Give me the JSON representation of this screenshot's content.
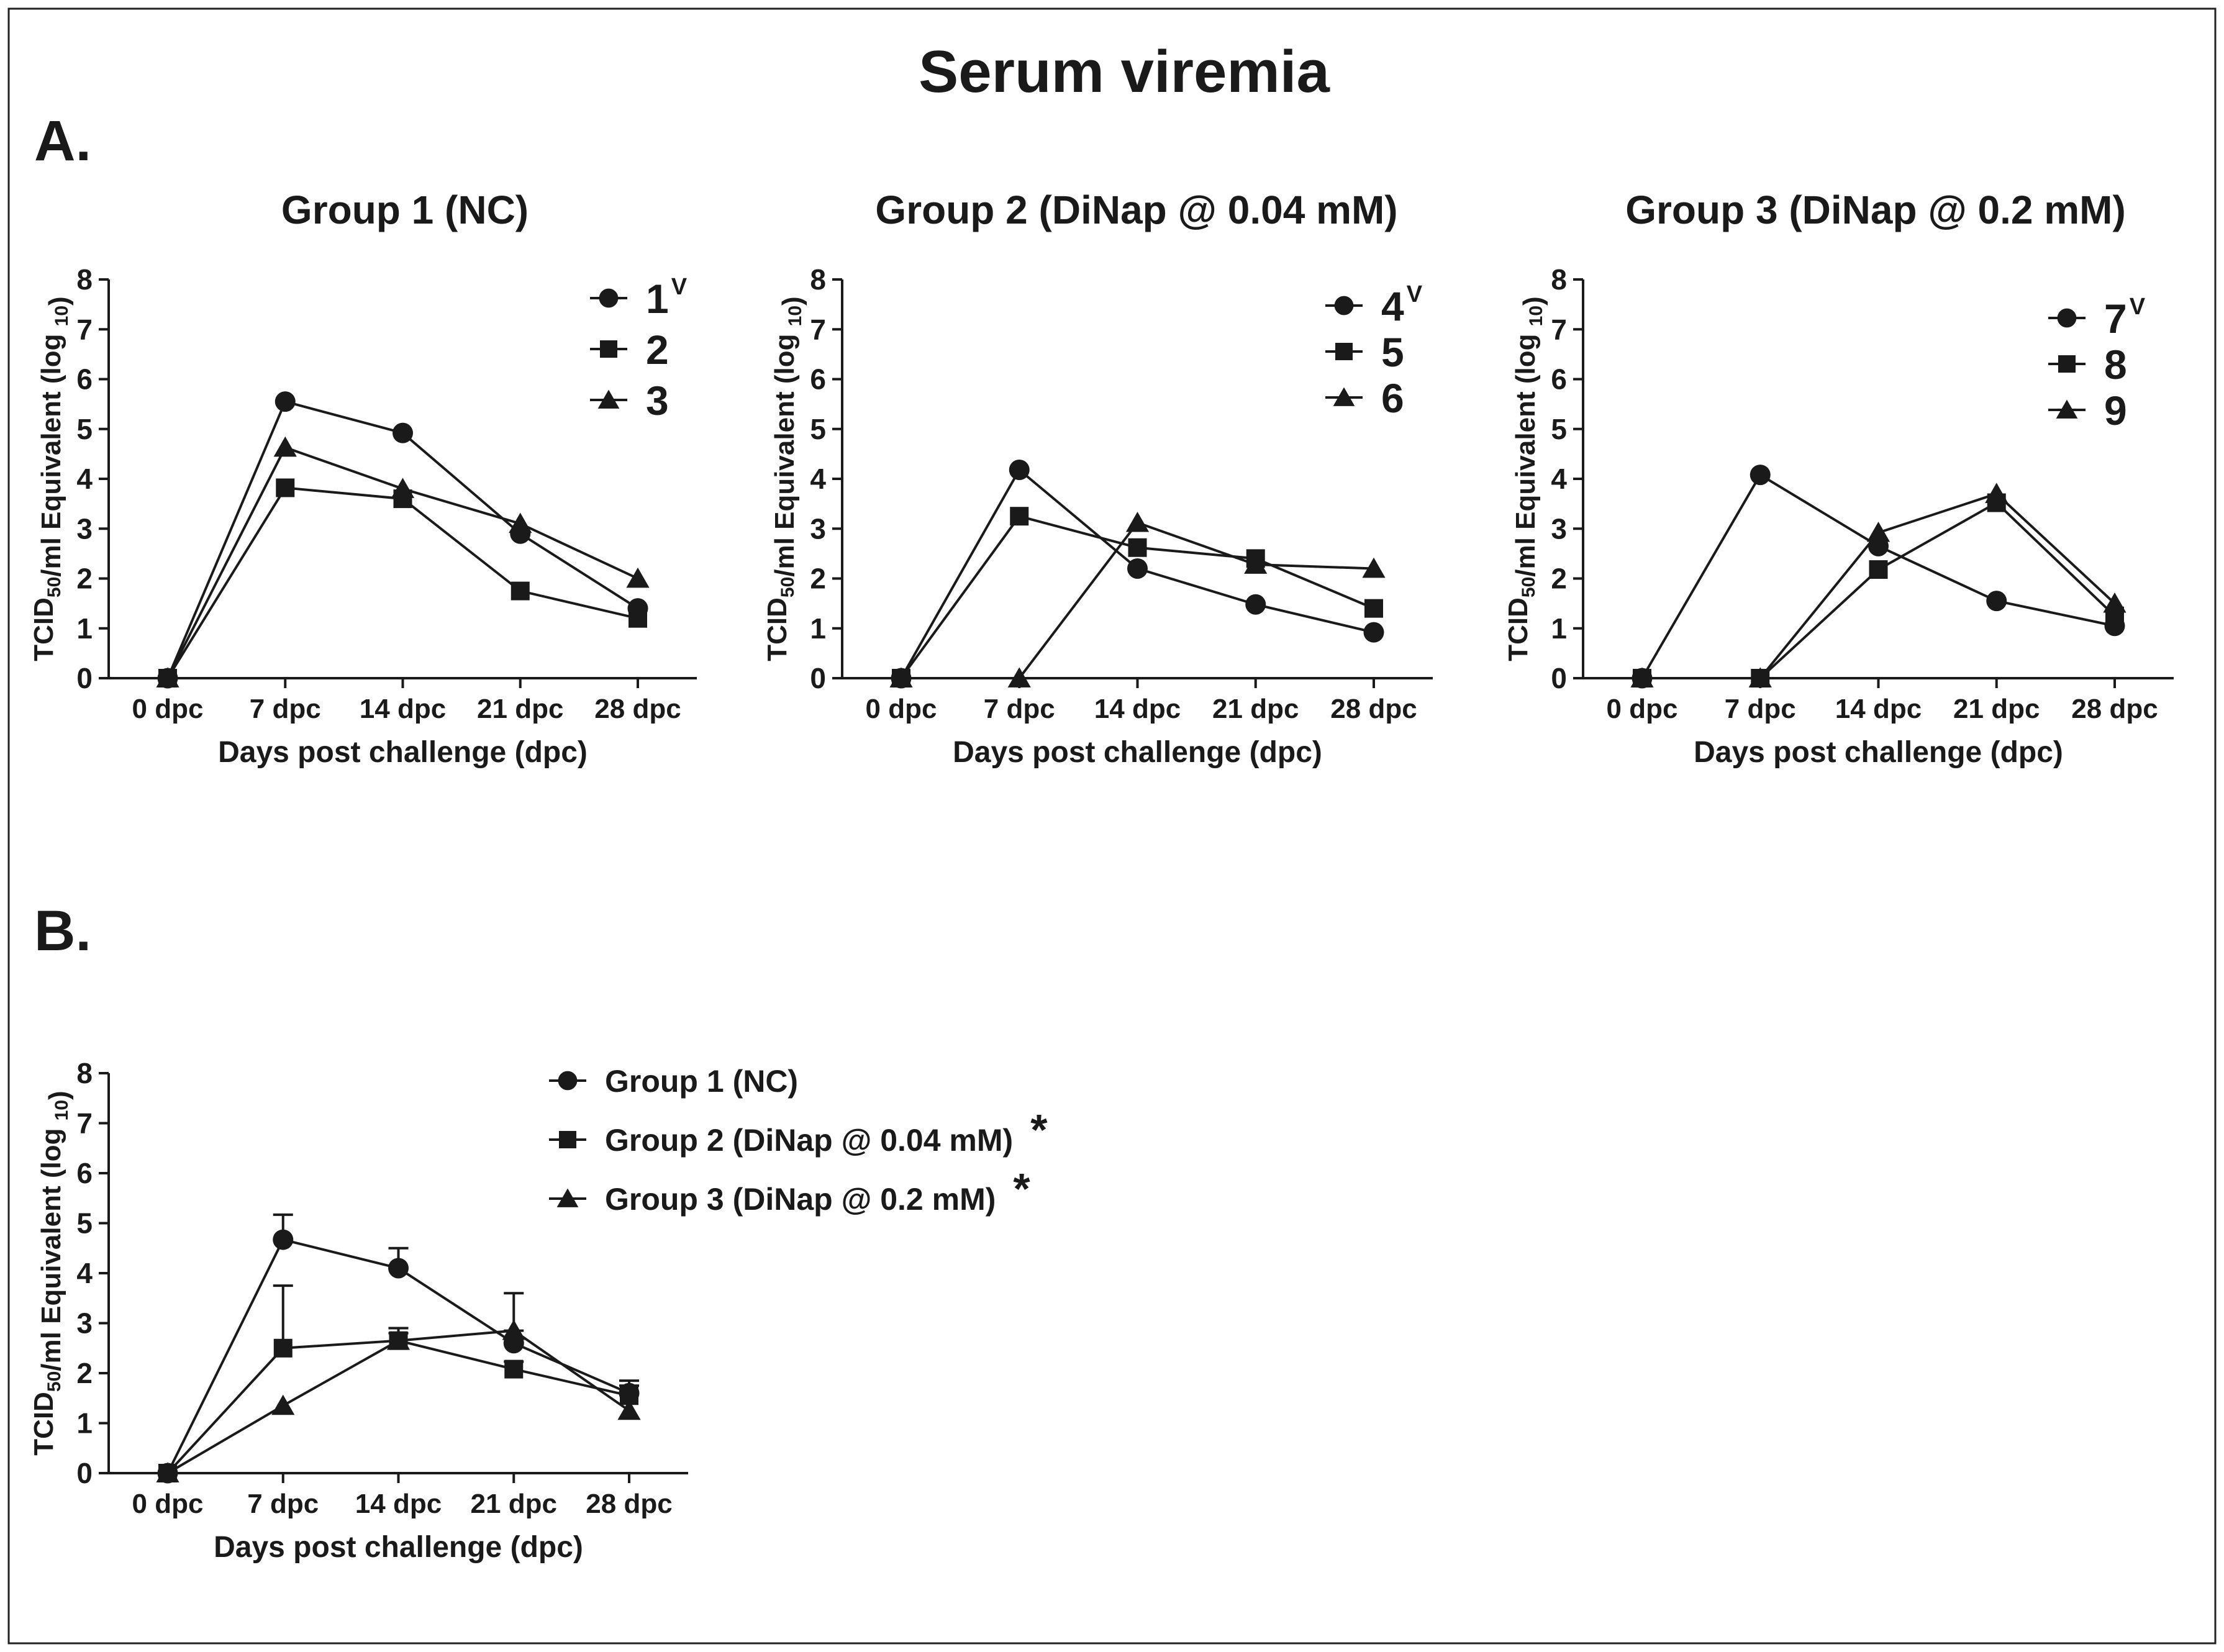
{
  "figure": {
    "title": "Serum viremia",
    "panel_a_label": "A.",
    "panel_b_label": "B."
  },
  "chart_data": [
    {
      "id": "g1",
      "type": "line",
      "title": "Group 1 (NC)",
      "categories": [
        "0 dpc",
        "7 dpc",
        "14 dpc",
        "21 dpc",
        "28 dpc"
      ],
      "xlabel": "Days post challenge (dpc)",
      "ylabel": "TCID50/ml Equivalent (log 10)",
      "ylim": [
        0,
        8
      ],
      "yticks": [
        "0",
        "1",
        "2",
        "3",
        "4",
        "5",
        "6",
        "7",
        "8"
      ],
      "legend_position": "top-right",
      "series": [
        {
          "name": "1",
          "superscript": "V",
          "marker": "circle",
          "values": [
            0,
            5.55,
            4.92,
            2.9,
            1.4
          ]
        },
        {
          "name": "2",
          "marker": "square",
          "values": [
            0,
            3.82,
            3.6,
            1.75,
            1.2
          ]
        },
        {
          "name": "3",
          "marker": "triangle",
          "values": [
            0,
            4.63,
            3.8,
            3.1,
            2.0
          ]
        }
      ]
    },
    {
      "id": "g2",
      "type": "line",
      "title": "Group 2 (DiNap @ 0.04 mM)",
      "categories": [
        "0 dpc",
        "7 dpc",
        "14 dpc",
        "21 dpc",
        "28 dpc"
      ],
      "xlabel": "Days post challenge (dpc)",
      "ylabel": "TCID50/ml Equivalent (log 10)",
      "ylim": [
        0,
        8
      ],
      "yticks": [
        "0",
        "1",
        "2",
        "3",
        "4",
        "5",
        "6",
        "7",
        "8"
      ],
      "legend_position": "top-right",
      "series": [
        {
          "name": "4",
          "superscript": "V",
          "marker": "circle",
          "values": [
            0,
            4.18,
            2.2,
            1.48,
            0.92
          ]
        },
        {
          "name": "5",
          "marker": "square",
          "values": [
            0,
            3.25,
            2.62,
            2.4,
            1.4
          ]
        },
        {
          "name": "6",
          "marker": "triangle",
          "values": [
            0,
            0,
            3.12,
            2.28,
            2.2
          ]
        }
      ]
    },
    {
      "id": "g3",
      "type": "line",
      "title": "Group 3 (DiNap @ 0.2 mM)",
      "categories": [
        "0 dpc",
        "7 dpc",
        "14 dpc",
        "21 dpc",
        "28 dpc"
      ],
      "xlabel": "Days post challenge (dpc)",
      "ylabel": "TCID50/ml Equivalent (log 10)",
      "ylim": [
        0,
        8
      ],
      "yticks": [
        "0",
        "1",
        "2",
        "3",
        "4",
        "5",
        "6",
        "7",
        "8"
      ],
      "legend_position": "top-right",
      "series": [
        {
          "name": "7",
          "superscript": "V",
          "marker": "circle",
          "values": [
            0,
            4.08,
            2.65,
            1.55,
            1.05
          ]
        },
        {
          "name": "8",
          "marker": "square",
          "values": [
            0,
            0,
            2.18,
            3.52,
            1.25
          ]
        },
        {
          "name": "9",
          "marker": "triangle",
          "values": [
            0,
            0,
            2.92,
            3.7,
            1.5
          ]
        }
      ]
    },
    {
      "id": "b",
      "type": "line",
      "title": "",
      "categories": [
        "0 dpc",
        "7 dpc",
        "14 dpc",
        "21 dpc",
        "28 dpc"
      ],
      "xlabel": "Days post challenge (dpc)",
      "ylabel": "TCID50/ml Equivalent (log 10)",
      "ylim": [
        0,
        8
      ],
      "yticks": [
        "0",
        "1",
        "2",
        "3",
        "4",
        "5",
        "6",
        "7",
        "8"
      ],
      "legend_position": "right",
      "error_bars": "upper, SEM",
      "series": [
        {
          "name": "Group 1 (NC)",
          "marker": "circle",
          "values": [
            0,
            4.67,
            4.1,
            2.6,
            1.6
          ],
          "errors": [
            0,
            0.5,
            0.4,
            0.25,
            0.25
          ]
        },
        {
          "name": "Group 2 (DiNap @ 0.04 mM)",
          "marker": "square",
          "values": [
            0,
            2.5,
            2.65,
            2.08,
            1.55
          ],
          "errors": [
            0,
            1.25,
            0.25,
            0.15,
            0.2
          ],
          "annotation": "*"
        },
        {
          "name": "Group 3 (DiNap @ 0.2 mM)",
          "marker": "triangle",
          "values": [
            0,
            1.35,
            2.65,
            2.85,
            1.25
          ],
          "errors": [
            0,
            0,
            0.15,
            0.75,
            0.35
          ],
          "annotation": "*"
        }
      ]
    }
  ]
}
